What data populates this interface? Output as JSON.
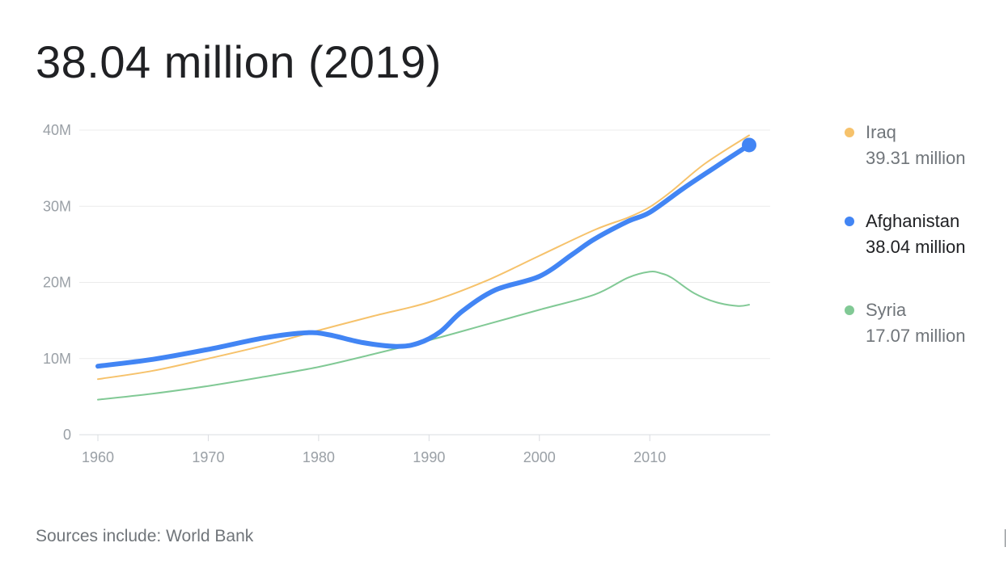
{
  "headline": "38.04 million (2019)",
  "source": "Sources include: World Bank",
  "legend": [
    {
      "name": "Iraq",
      "value": "39.31 million",
      "color": "#f6c26b",
      "active": false
    },
    {
      "name": "Afghanistan",
      "value": "38.04 million",
      "color": "#4285f4",
      "active": true
    },
    {
      "name": "Syria",
      "value": "17.07 million",
      "color": "#81c995",
      "active": false
    }
  ],
  "chart_data": {
    "type": "line",
    "x_ticks": [
      "1960",
      "1970",
      "1980",
      "1990",
      "2000",
      "2010"
    ],
    "y_ticks": [
      "0",
      "10M",
      "20M",
      "30M",
      "40M"
    ],
    "xlim": [
      1960,
      2019
    ],
    "ylim": [
      0,
      40
    ],
    "y_units": "millions",
    "grid": true,
    "legend_position": "right",
    "highlight": {
      "series": "Afghanistan",
      "x": 2019,
      "y": 38.04
    },
    "series": [
      {
        "name": "Iraq",
        "color": "#f6c26b",
        "width": 2,
        "x": [
          1960,
          1965,
          1970,
          1975,
          1980,
          1985,
          1990,
          1995,
          2000,
          2005,
          2008,
          2010,
          2012,
          2015,
          2019
        ],
        "y": [
          7.3,
          8.4,
          10.0,
          11.7,
          13.7,
          15.6,
          17.4,
          20.1,
          23.5,
          26.9,
          28.5,
          29.9,
          32.0,
          35.6,
          39.31
        ]
      },
      {
        "name": "Afghanistan",
        "color": "#4285f4",
        "width": 6,
        "x": [
          1960,
          1965,
          1970,
          1975,
          1979,
          1981,
          1984,
          1987,
          1989,
          1991,
          1993,
          1996,
          2000,
          2003,
          2005,
          2008,
          2010,
          2013,
          2016,
          2019
        ],
        "y": [
          9.0,
          9.9,
          11.2,
          12.7,
          13.4,
          13.1,
          12.1,
          11.6,
          12.0,
          13.5,
          16.2,
          19.0,
          20.8,
          23.7,
          25.7,
          28.0,
          29.2,
          32.3,
          35.2,
          38.04
        ]
      },
      {
        "name": "Syria",
        "color": "#81c995",
        "width": 2,
        "x": [
          1960,
          1965,
          1970,
          1975,
          1980,
          1985,
          1990,
          1995,
          2000,
          2005,
          2008,
          2010,
          2011,
          2012,
          2014,
          2016,
          2018,
          2019
        ],
        "y": [
          4.6,
          5.4,
          6.4,
          7.6,
          8.9,
          10.6,
          12.4,
          14.4,
          16.4,
          18.4,
          20.6,
          21.4,
          21.2,
          20.6,
          18.6,
          17.4,
          16.9,
          17.07
        ]
      }
    ]
  }
}
